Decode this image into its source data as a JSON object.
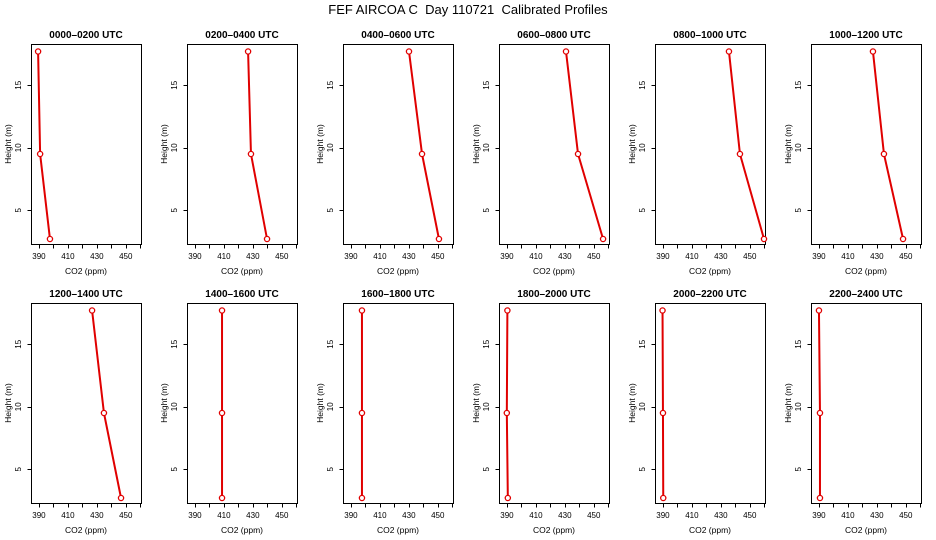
{
  "title": "FEF AIRCOA C  Day 110721  Calibrated Profiles",
  "colors": {
    "profile_line": "#e00000"
  },
  "chart_data": [
    {
      "type": "line",
      "title": "0000–0200 UTC",
      "xlabel": "CO2 (ppm)",
      "ylabel": "Height (m)",
      "xlim": [
        384.5,
        460.5
      ],
      "ylim": [
        2.3,
        18.3
      ],
      "grid": false,
      "x_ticks": [
        390,
        400,
        410,
        420,
        430,
        440,
        450,
        460
      ],
      "x_tick_labels": [
        "390",
        "410",
        "430",
        "450"
      ],
      "y_ticks": [
        5,
        10,
        15
      ],
      "y_tick_labels": [
        "5",
        "10",
        "15"
      ],
      "series": [
        {
          "x": [
            397.6,
            390.8,
            389.4
          ],
          "y": [
            2.7,
            9.5,
            17.7
          ]
        }
      ]
    },
    {
      "type": "line",
      "title": "0200–0400 UTC",
      "xlabel": "CO2 (ppm)",
      "ylabel": "Height (m)",
      "xlim": [
        384.5,
        460.5
      ],
      "ylim": [
        2.3,
        18.3
      ],
      "grid": false,
      "x_ticks": [
        390,
        400,
        410,
        420,
        430,
        440,
        450,
        460
      ],
      "x_tick_labels": [
        "390",
        "410",
        "430",
        "450"
      ],
      "y_ticks": [
        5,
        10,
        15
      ],
      "y_tick_labels": [
        "5",
        "10",
        "15"
      ],
      "series": [
        {
          "x": [
            439.8,
            428.7,
            426.7
          ],
          "y": [
            2.7,
            9.5,
            17.7
          ]
        }
      ]
    },
    {
      "type": "line",
      "title": "0400–0600 UTC",
      "xlabel": "CO2 (ppm)",
      "ylabel": "Height (m)",
      "xlim": [
        384.5,
        460.5
      ],
      "ylim": [
        2.3,
        18.3
      ],
      "grid": false,
      "x_ticks": [
        390,
        400,
        410,
        420,
        430,
        440,
        450,
        460
      ],
      "x_tick_labels": [
        "390",
        "410",
        "430",
        "450"
      ],
      "y_ticks": [
        5,
        10,
        15
      ],
      "y_tick_labels": [
        "5",
        "10",
        "15"
      ],
      "series": [
        {
          "x": [
            450.8,
            439.1,
            430.1
          ],
          "y": [
            2.7,
            9.5,
            17.7
          ]
        }
      ]
    },
    {
      "type": "line",
      "title": "0600–0800 UTC",
      "xlabel": "CO2 (ppm)",
      "ylabel": "Height (m)",
      "xlim": [
        384.5,
        460.5
      ],
      "ylim": [
        2.3,
        18.3
      ],
      "grid": false,
      "x_ticks": [
        390,
        400,
        410,
        420,
        430,
        440,
        450,
        460
      ],
      "x_tick_labels": [
        "390",
        "410",
        "430",
        "450"
      ],
      "y_ticks": [
        5,
        10,
        15
      ],
      "y_tick_labels": [
        "5",
        "10",
        "15"
      ],
      "series": [
        {
          "x": [
            456.4,
            439.1,
            430.8
          ],
          "y": [
            2.7,
            9.5,
            17.7
          ]
        }
      ]
    },
    {
      "type": "line",
      "title": "0800–1000 UTC",
      "xlabel": "CO2 (ppm)",
      "ylabel": "Height (m)",
      "xlim": [
        384.5,
        460.5
      ],
      "ylim": [
        2.3,
        18.3
      ],
      "grid": false,
      "x_ticks": [
        390,
        400,
        410,
        420,
        430,
        440,
        450,
        460
      ],
      "x_tick_labels": [
        "390",
        "410",
        "430",
        "450"
      ],
      "y_ticks": [
        5,
        10,
        15
      ],
      "y_tick_labels": [
        "5",
        "10",
        "15"
      ],
      "series": [
        {
          "x": [
            459.8,
            443.2,
            435.6
          ],
          "y": [
            2.7,
            9.5,
            17.7
          ]
        }
      ]
    },
    {
      "type": "line",
      "title": "1000–1200 UTC",
      "xlabel": "CO2 (ppm)",
      "ylabel": "Height (m)",
      "xlim": [
        384.5,
        460.5
      ],
      "ylim": [
        2.3,
        18.3
      ],
      "grid": false,
      "x_ticks": [
        390,
        400,
        410,
        420,
        430,
        440,
        450,
        460
      ],
      "x_tick_labels": [
        "390",
        "410",
        "430",
        "450"
      ],
      "y_ticks": [
        5,
        10,
        15
      ],
      "y_tick_labels": [
        "5",
        "10",
        "15"
      ],
      "series": [
        {
          "x": [
            448.1,
            434.9,
            427.3
          ],
          "y": [
            2.7,
            9.5,
            17.7
          ]
        }
      ]
    },
    {
      "type": "line",
      "title": "1200–1400 UTC",
      "xlabel": "CO2 (ppm)",
      "ylabel": "Height (m)",
      "xlim": [
        384.5,
        460.5
      ],
      "ylim": [
        2.3,
        18.3
      ],
      "grid": false,
      "x_ticks": [
        390,
        400,
        410,
        420,
        430,
        440,
        450,
        460
      ],
      "x_tick_labels": [
        "390",
        "410",
        "430",
        "450"
      ],
      "y_ticks": [
        5,
        10,
        15
      ],
      "y_tick_labels": [
        "5",
        "10",
        "15"
      ],
      "series": [
        {
          "x": [
            446.7,
            434.9,
            426.7
          ],
          "y": [
            2.7,
            9.5,
            17.7
          ]
        }
      ]
    },
    {
      "type": "line",
      "title": "1400–1600 UTC",
      "xlabel": "CO2 (ppm)",
      "ylabel": "Height (m)",
      "xlim": [
        384.5,
        460.5
      ],
      "ylim": [
        2.3,
        18.3
      ],
      "grid": false,
      "x_ticks": [
        390,
        400,
        410,
        420,
        430,
        440,
        450,
        460
      ],
      "x_tick_labels": [
        "390",
        "410",
        "430",
        "450"
      ],
      "y_ticks": [
        5,
        10,
        15
      ],
      "y_tick_labels": [
        "5",
        "10",
        "15"
      ],
      "series": [
        {
          "x": [
            408.7,
            408.7,
            408.7
          ],
          "y": [
            2.7,
            9.5,
            17.7
          ]
        }
      ]
    },
    {
      "type": "line",
      "title": "1600–1800 UTC",
      "xlabel": "CO2 (ppm)",
      "ylabel": "Height (m)",
      "xlim": [
        384.5,
        460.5
      ],
      "ylim": [
        2.3,
        18.3
      ],
      "grid": false,
      "x_ticks": [
        390,
        400,
        410,
        420,
        430,
        440,
        450,
        460
      ],
      "x_tick_labels": [
        "390",
        "410",
        "430",
        "450"
      ],
      "y_ticks": [
        5,
        10,
        15
      ],
      "y_tick_labels": [
        "5",
        "10",
        "15"
      ],
      "series": [
        {
          "x": [
            397.6,
            397.6,
            397.6
          ],
          "y": [
            2.7,
            9.5,
            17.7
          ]
        }
      ]
    },
    {
      "type": "line",
      "title": "1800–2000 UTC",
      "xlabel": "CO2 (ppm)",
      "ylabel": "Height (m)",
      "xlim": [
        384.5,
        460.5
      ],
      "ylim": [
        2.3,
        18.3
      ],
      "grid": false,
      "x_ticks": [
        390,
        400,
        410,
        420,
        430,
        440,
        450,
        460
      ],
      "x_tick_labels": [
        "390",
        "410",
        "430",
        "450"
      ],
      "y_ticks": [
        5,
        10,
        15
      ],
      "y_tick_labels": [
        "5",
        "10",
        "15"
      ],
      "series": [
        {
          "x": [
            390.6,
            389.9,
            390.3
          ],
          "y": [
            2.7,
            9.5,
            17.7
          ]
        }
      ]
    },
    {
      "type": "line",
      "title": "2000–2200 UTC",
      "xlabel": "CO2 (ppm)",
      "ylabel": "Height (m)",
      "xlim": [
        384.5,
        460.5
      ],
      "ylim": [
        2.3,
        18.3
      ],
      "grid": false,
      "x_ticks": [
        390,
        400,
        410,
        420,
        430,
        440,
        450,
        460
      ],
      "x_tick_labels": [
        "390",
        "410",
        "430",
        "450"
      ],
      "y_ticks": [
        5,
        10,
        15
      ],
      "y_tick_labels": [
        "5",
        "10",
        "15"
      ],
      "series": [
        {
          "x": [
            390.2,
            390.0,
            389.7
          ],
          "y": [
            2.7,
            9.5,
            17.7
          ]
        }
      ]
    },
    {
      "type": "line",
      "title": "2200–2400 UTC",
      "xlabel": "CO2 (ppm)",
      "ylabel": "Height (m)",
      "xlim": [
        384.5,
        460.5
      ],
      "ylim": [
        2.3,
        18.3
      ],
      "grid": false,
      "x_ticks": [
        390,
        400,
        410,
        420,
        430,
        440,
        450,
        460
      ],
      "x_tick_labels": [
        "390",
        "410",
        "430",
        "450"
      ],
      "y_ticks": [
        5,
        10,
        15
      ],
      "y_tick_labels": [
        "5",
        "10",
        "15"
      ],
      "series": [
        {
          "x": [
            390.7,
            390.7,
            390.0
          ],
          "y": [
            2.7,
            9.5,
            17.7
          ]
        }
      ]
    }
  ]
}
